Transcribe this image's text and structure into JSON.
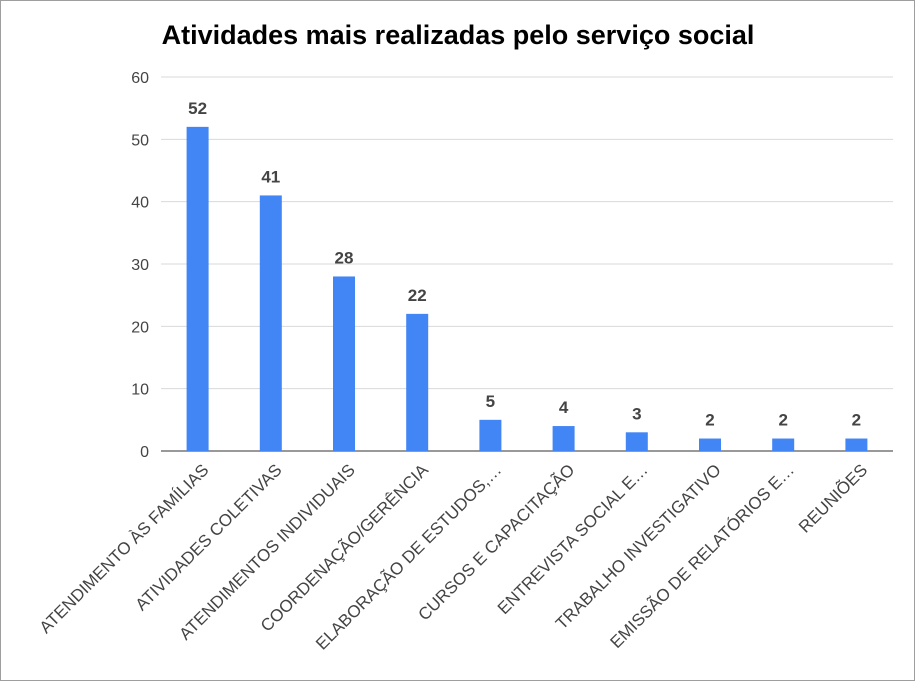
{
  "chart_data": {
    "type": "bar",
    "title": "Atividades mais realizadas pelo serviço social",
    "xlabel": "",
    "ylabel": "",
    "ylim": [
      0,
      60
    ],
    "yticks": [
      0,
      10,
      20,
      30,
      40,
      50,
      60
    ],
    "grid": true,
    "legend": "none",
    "bar_color": "#4285f4",
    "categories": [
      "ATENDIMENTO ÀS FAMÍLIAS",
      "ATIVIDADES COLETIVAS",
      "ATENDIMENTOS INDIVIDUAIS",
      "COORDENAÇÃO/GERÊNCIA",
      "ELABORAÇÃO DE ESTUDOS,…",
      "CURSOS E CAPACITAÇÃO",
      "ENTREVISTA SOCIAL E…",
      "TRABALHO INVESTIGATIVO",
      "EMISSÃO DE RELATÓRIOS E…",
      "REUNIÕES"
    ],
    "values": [
      52,
      41,
      28,
      22,
      5,
      4,
      3,
      2,
      2,
      2
    ]
  }
}
